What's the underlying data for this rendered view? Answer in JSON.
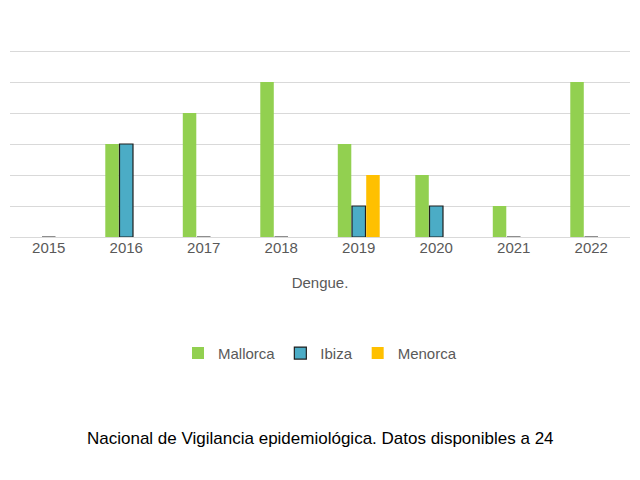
{
  "chart_data": {
    "type": "bar",
    "x_label": "Dengue.",
    "annotations": [
      "Nacional de Vigilancia epidemiológica. Datos disponibles a 24"
    ],
    "categories": [
      "2015",
      "2016",
      "2017",
      "2018",
      "2019",
      "2020",
      "2021",
      "2022"
    ],
    "series": [
      {
        "name": "Mallorca",
        "color": "#92d050",
        "values": [
          0,
          3,
          4,
          5,
          3,
          2,
          1,
          5
        ]
      },
      {
        "name": "Ibiza",
        "color": "#4bacc6",
        "values": [
          0,
          3,
          0,
          0,
          1,
          1,
          0,
          0
        ]
      },
      {
        "name": "Menorca",
        "color": "#ffc000",
        "values": [
          0,
          0,
          0,
          0,
          2,
          0,
          0,
          0
        ]
      }
    ],
    "ylim": [
      0,
      7
    ],
    "yticks": [
      0,
      1,
      2,
      3,
      4,
      5,
      6,
      7
    ],
    "grid": true,
    "legend": "bottom",
    "tick_labels": "x"
  }
}
